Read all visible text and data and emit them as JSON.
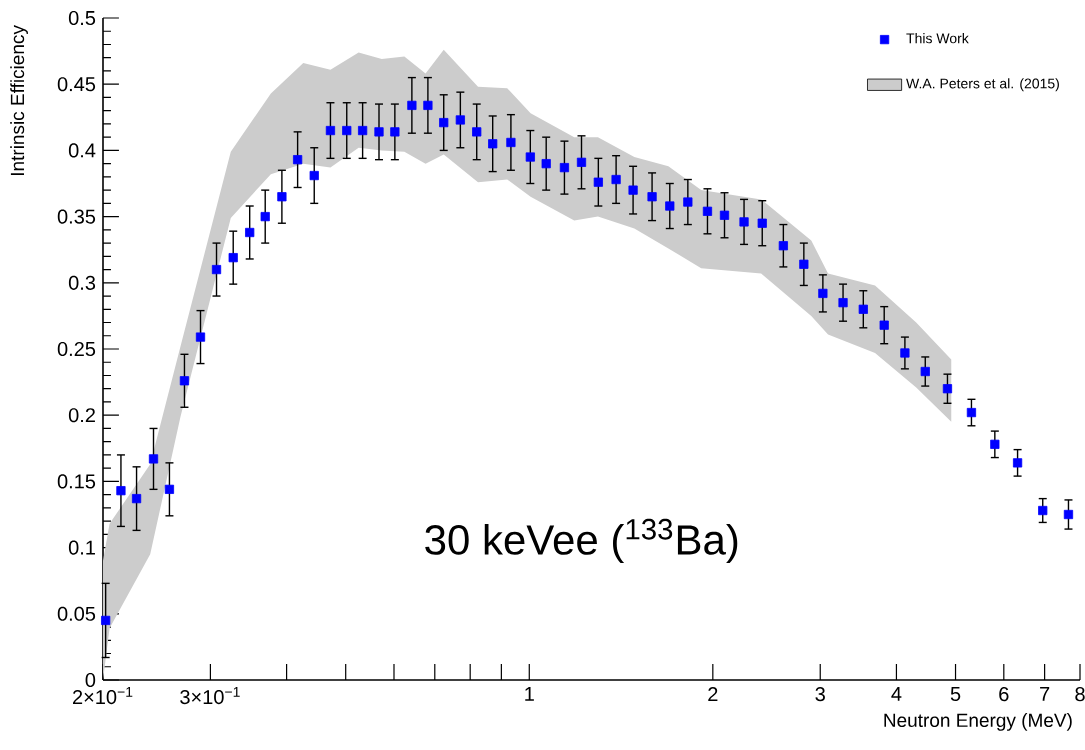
{
  "chart_data": {
    "type": "scatter",
    "xlabel": "Neutron Energy (MeV)",
    "ylabel": "Intrinsic Efficiency",
    "annotations": [
      "30 keVee ($^{133}$Ba)"
    ],
    "log": "x",
    "xlim": [
      0.2,
      8
    ],
    "ylim": [
      0,
      0.5
    ],
    "xticks": [
      {
        "value": 0.2,
        "label": "2×10$^{−1}$"
      },
      {
        "value": 0.3,
        "label": "3×10$^{−1}$"
      },
      {
        "value": 0.4,
        "label": null
      },
      {
        "value": 0.5,
        "label": null
      },
      {
        "value": 0.6,
        "label": null
      },
      {
        "value": 0.7,
        "label": null
      },
      {
        "value": 0.8,
        "label": null
      },
      {
        "value": 0.9,
        "label": null
      },
      1,
      2,
      3,
      4,
      5,
      6,
      7,
      8
    ],
    "yticks": [
      0,
      0.05,
      0.1,
      0.15,
      0.2,
      0.25,
      0.3,
      0.35,
      0.4,
      0.45,
      0.5
    ],
    "grid": false,
    "legend": "top right",
    "marker": "square",
    "series": [
      {
        "type": "scatter",
        "name": "This Work",
        "color": "#0000ff",
        "x": [
          0.202,
          0.214,
          0.227,
          0.242,
          0.257,
          0.272,
          0.289,
          0.307,
          0.327,
          0.348,
          0.369,
          0.393,
          0.417,
          0.444,
          0.472,
          0.502,
          0.533,
          0.567,
          0.602,
          0.642,
          0.682,
          0.724,
          0.771,
          0.82,
          0.871,
          0.933,
          1.004,
          1.066,
          1.142,
          1.218,
          1.298,
          1.388,
          1.48,
          1.59,
          1.7,
          1.82,
          1.96,
          2.09,
          2.25,
          2.41,
          2.61,
          2.82,
          3.03,
          3.27,
          3.53,
          3.82,
          4.13,
          4.46,
          4.85,
          5.31,
          5.8,
          6.32,
          6.95,
          7.66
        ],
        "values": [
          0.045,
          0.143,
          0.137,
          0.167,
          0.144,
          0.226,
          0.259,
          0.31,
          0.319,
          0.338,
          0.35,
          0.365,
          0.393,
          0.381,
          0.415,
          0.415,
          0.415,
          0.414,
          0.414,
          0.434,
          0.434,
          0.421,
          0.423,
          0.414,
          0.405,
          0.406,
          0.395,
          0.39,
          0.387,
          0.391,
          0.376,
          0.378,
          0.37,
          0.365,
          0.358,
          0.361,
          0.354,
          0.351,
          0.346,
          0.345,
          0.328,
          0.314,
          0.292,
          0.285,
          0.28,
          0.268,
          0.247,
          0.233,
          0.22,
          0.202,
          0.178,
          0.164,
          0.128,
          0.125
        ],
        "errors": [
          0.028,
          0.027,
          0.024,
          0.023,
          0.02,
          0.02,
          0.02,
          0.02,
          0.02,
          0.02,
          0.02,
          0.02,
          0.021,
          0.021,
          0.021,
          0.021,
          0.021,
          0.021,
          0.021,
          0.021,
          0.021,
          0.021,
          0.021,
          0.021,
          0.021,
          0.021,
          0.02,
          0.02,
          0.02,
          0.02,
          0.018,
          0.018,
          0.018,
          0.018,
          0.017,
          0.017,
          0.017,
          0.017,
          0.017,
          0.017,
          0.016,
          0.016,
          0.014,
          0.014,
          0.014,
          0.014,
          0.012,
          0.011,
          0.011,
          0.01,
          0.01,
          0.01,
          0.009,
          0.011
        ]
      },
      {
        "type": "area",
        "name": "W.A. Peters et al. (2015)",
        "color": "#cccccc",
        "x": [
          0.2,
          0.205,
          0.239,
          0.268,
          0.324,
          0.377,
          0.426,
          0.472,
          0.525,
          0.573,
          0.624,
          0.676,
          0.724,
          0.824,
          0.92,
          1.005,
          1.185,
          1.296,
          1.487,
          1.691,
          1.914,
          2.4,
          2.9,
          3.09,
          3.69,
          4.31,
          4.92
        ],
        "values": [
          null,
          null,
          null,
          null,
          null,
          null,
          null,
          null,
          null,
          null,
          null,
          null,
          null,
          null,
          null,
          null,
          null,
          null,
          null,
          null,
          null,
          null,
          null,
          null,
          null,
          null,
          null
        ],
        "upper": [
          0.09,
          0.118,
          0.163,
          0.252,
          0.399,
          0.443,
          0.466,
          0.461,
          0.474,
          0.469,
          0.471,
          0.458,
          0.476,
          0.448,
          0.447,
          0.428,
          0.41,
          0.41,
          0.395,
          0.388,
          0.37,
          0.363,
          0.332,
          0.307,
          0.298,
          0.27,
          0.242
        ],
        "lower": [
          0.0,
          0.039,
          0.095,
          0.199,
          0.349,
          0.382,
          0.39,
          0.387,
          0.402,
          0.4,
          0.399,
          0.39,
          0.397,
          0.376,
          0.378,
          0.365,
          0.347,
          0.35,
          0.341,
          0.326,
          0.311,
          0.307,
          0.275,
          0.261,
          0.247,
          0.221,
          0.195
        ]
      }
    ]
  }
}
